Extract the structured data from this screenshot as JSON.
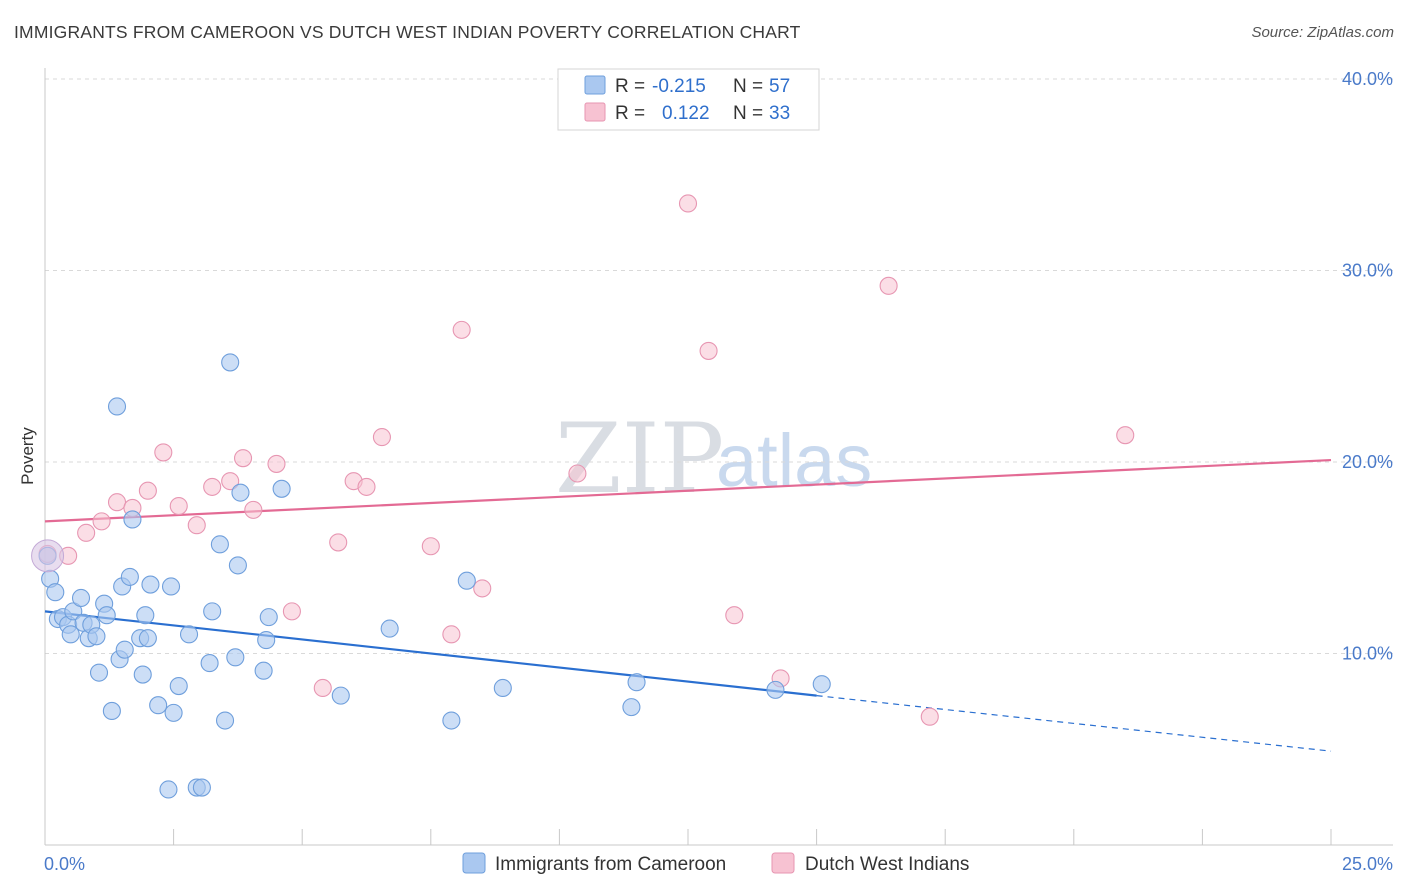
{
  "header": {
    "title": "IMMIGRANTS FROM CAMEROON VS DUTCH WEST INDIAN POVERTY CORRELATION CHART",
    "source": "Source: ZipAtlas.com"
  },
  "watermark": {
    "zip": "ZIP",
    "atlas": "atlas"
  },
  "legend": {
    "rows": [
      {
        "r_label": "R =",
        "r_value": "-0.215",
        "n_label": "N =",
        "n_value": "57"
      },
      {
        "r_label": "R =",
        "r_value": "0.122",
        "n_label": "N =",
        "n_value": "33"
      }
    ]
  },
  "bottom_legend": {
    "series1": "Immigrants from Cameroon",
    "series2": "Dutch West Indians"
  },
  "colors": {
    "series1_fill": "#aac8f0",
    "series1_stroke": "#6f9fdc",
    "series1_line": "#2a6fd0",
    "series2_fill": "#f7c2d2",
    "series2_stroke": "#e796b2",
    "series2_line": "#e36a94",
    "grid": "#d9d9d9",
    "axis_text": "#4a7ac9"
  },
  "chart_data": {
    "type": "scatter",
    "title": "IMMIGRANTS FROM CAMEROON VS DUTCH WEST INDIAN POVERTY CORRELATION CHART",
    "xlabel": "",
    "ylabel": "Poverty",
    "xlim": [
      0,
      25
    ],
    "ylim": [
      0,
      40
    ],
    "x_tick_labels": [
      "0.0%",
      "25.0%"
    ],
    "y_tick_labels": [
      "10.0%",
      "20.0%",
      "30.0%",
      "40.0%"
    ],
    "y_ticks": [
      10,
      20,
      30,
      40
    ],
    "grid": true,
    "legend_position": "top-center",
    "series": [
      {
        "name": "Immigrants from Cameroon",
        "r": -0.215,
        "n": 57,
        "trend": {
          "x_solid": [
            0,
            15
          ],
          "y_solid": [
            12.2,
            7.8
          ],
          "x_dashed": [
            15,
            25
          ],
          "y_dashed": [
            7.8,
            4.9
          ]
        },
        "points": [
          [
            0.05,
            15.1
          ],
          [
            0.1,
            13.9
          ],
          [
            0.2,
            13.2
          ],
          [
            0.25,
            11.8
          ],
          [
            0.35,
            11.9
          ],
          [
            0.45,
            11.5
          ],
          [
            0.5,
            11.0
          ],
          [
            0.55,
            12.2
          ],
          [
            0.7,
            12.9
          ],
          [
            0.75,
            11.6
          ],
          [
            0.85,
            10.8
          ],
          [
            0.9,
            11.5
          ],
          [
            1.0,
            10.9
          ],
          [
            1.05,
            9.0
          ],
          [
            1.15,
            12.6
          ],
          [
            1.2,
            12.0
          ],
          [
            1.3,
            7.0
          ],
          [
            1.4,
            22.9
          ],
          [
            1.45,
            9.7
          ],
          [
            1.5,
            13.5
          ],
          [
            1.55,
            10.2
          ],
          [
            1.65,
            14.0
          ],
          [
            1.7,
            17.0
          ],
          [
            1.85,
            10.8
          ],
          [
            1.9,
            8.9
          ],
          [
            1.95,
            12.0
          ],
          [
            2.0,
            10.8
          ],
          [
            2.05,
            13.6
          ],
          [
            2.2,
            7.3
          ],
          [
            2.4,
            2.9
          ],
          [
            2.45,
            13.5
          ],
          [
            2.5,
            6.9
          ],
          [
            2.6,
            8.3
          ],
          [
            2.8,
            11.0
          ],
          [
            2.95,
            3.0
          ],
          [
            3.05,
            3.0
          ],
          [
            3.2,
            9.5
          ],
          [
            3.25,
            12.2
          ],
          [
            3.4,
            15.7
          ],
          [
            3.5,
            6.5
          ],
          [
            3.6,
            25.2
          ],
          [
            3.7,
            9.8
          ],
          [
            3.75,
            14.6
          ],
          [
            3.8,
            18.4
          ],
          [
            4.25,
            9.1
          ],
          [
            4.3,
            10.7
          ],
          [
            4.35,
            11.9
          ],
          [
            4.6,
            18.6
          ],
          [
            5.75,
            7.8
          ],
          [
            6.7,
            11.3
          ],
          [
            7.9,
            6.5
          ],
          [
            8.2,
            13.8
          ],
          [
            8.9,
            8.2
          ],
          [
            11.4,
            7.2
          ],
          [
            11.5,
            8.5
          ],
          [
            15.1,
            8.4
          ],
          [
            14.2,
            8.1
          ]
        ]
      },
      {
        "name": "Dutch West Indians",
        "r": 0.122,
        "n": 33,
        "trend": {
          "x": [
            0,
            25
          ],
          "y": [
            16.9,
            20.1
          ]
        },
        "points": [
          [
            0.05,
            15.2
          ],
          [
            0.45,
            15.1
          ],
          [
            0.8,
            16.3
          ],
          [
            1.1,
            16.9
          ],
          [
            1.4,
            17.9
          ],
          [
            1.7,
            17.6
          ],
          [
            2.0,
            18.5
          ],
          [
            2.3,
            20.5
          ],
          [
            2.6,
            17.7
          ],
          [
            2.95,
            16.7
          ],
          [
            3.25,
            18.7
          ],
          [
            3.6,
            19.0
          ],
          [
            3.85,
            20.2
          ],
          [
            4.05,
            17.5
          ],
          [
            4.5,
            19.9
          ],
          [
            4.8,
            12.2
          ],
          [
            5.4,
            8.2
          ],
          [
            5.7,
            15.8
          ],
          [
            6.0,
            19.0
          ],
          [
            6.25,
            18.7
          ],
          [
            6.55,
            21.3
          ],
          [
            7.5,
            15.6
          ],
          [
            7.9,
            11.0
          ],
          [
            8.1,
            26.9
          ],
          [
            8.5,
            13.4
          ],
          [
            10.35,
            19.4
          ],
          [
            12.5,
            33.5
          ],
          [
            12.9,
            25.8
          ],
          [
            13.4,
            12.0
          ],
          [
            14.3,
            8.7
          ],
          [
            16.4,
            29.2
          ],
          [
            17.2,
            6.7
          ],
          [
            21.0,
            21.4
          ]
        ]
      }
    ]
  }
}
